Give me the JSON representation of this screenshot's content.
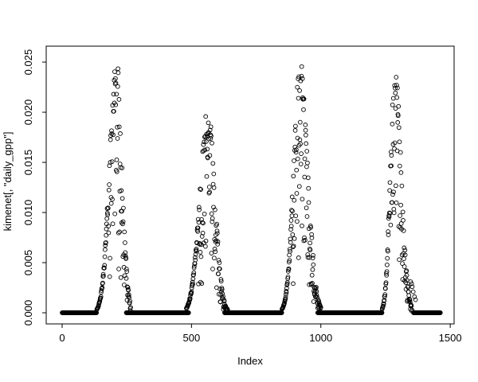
{
  "figure": {
    "background_color": "#ffffff",
    "foreground_color": "#000000"
  },
  "chart_data": {
    "type": "scatter",
    "title": "",
    "xlabel": "Index",
    "ylabel": "kimenet[, \"daily_gpp\"]",
    "legend": null,
    "grid": false,
    "xlim": [
      -61.5,
      1515
    ],
    "ylim": [
      -0.00111,
      0.02659
    ],
    "x_ticks": [
      {
        "value": 0,
        "label": "0"
      },
      {
        "value": 500,
        "label": "500"
      },
      {
        "value": 1000,
        "label": "1000"
      },
      {
        "value": 1500,
        "label": "1500"
      }
    ],
    "y_ticks": [
      {
        "value": 0.0,
        "label": "0.000"
      },
      {
        "value": 0.005,
        "label": "0.005"
      },
      {
        "value": 0.01,
        "label": "0.010"
      },
      {
        "value": 0.015,
        "label": "0.015"
      },
      {
        "value": 0.02,
        "label": "0.020"
      },
      {
        "value": 0.025,
        "label": "0.025"
      }
    ],
    "marker": {
      "shape": "open-circle",
      "color": "#000000",
      "radius": 2.4,
      "stroke_width": 0.9
    },
    "series_description": "Daily GPP time series over ~4 annual cycles: long winter runs at exactly 0 with four summer growing-season peaks of scattered points",
    "n_points": 1463,
    "zero_runs": [
      [
        0,
        133
      ],
      [
        248,
        489
      ],
      [
        628,
        846
      ],
      [
        988,
        1236
      ],
      [
        1358,
        1462
      ]
    ],
    "peaks": [
      {
        "start": 134,
        "end": 265,
        "center": 210,
        "max": 0.0256,
        "sigma_rise": 26,
        "sigma_fall": 21
      },
      {
        "start": 480,
        "end": 648,
        "center": 563,
        "max": 0.0205,
        "sigma_rise": 30,
        "sigma_fall": 27
      },
      {
        "start": 845,
        "end": 1000,
        "center": 920,
        "max": 0.0255,
        "sigma_rise": 24,
        "sigma_fall": 29
      },
      {
        "start": 1235,
        "end": 1352,
        "center": 1286,
        "max": 0.0246,
        "sigma_rise": 17,
        "sigma_fall": 24
      }
    ],
    "tail_points": [
      [
        1347,
        0.0031
      ],
      [
        1351,
        0.0029
      ],
      [
        1353,
        0.0026
      ],
      [
        1357,
        0.0021
      ],
      [
        1362,
        0.0016
      ],
      [
        1366,
        0.0013
      ]
    ],
    "seed": 42
  }
}
